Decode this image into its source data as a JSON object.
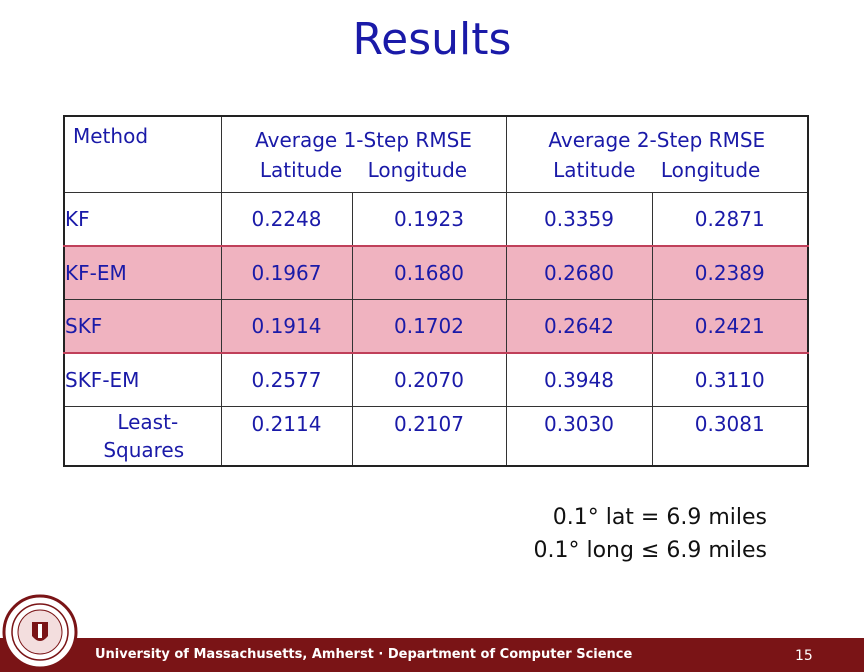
{
  "slide": {
    "title": "Results",
    "page_number": "15",
    "footer": "University of Massachusetts, Amherst · Department of Computer Science"
  },
  "table": {
    "header": {
      "method": "Method",
      "group1_title": "Average 1-Step RMSE",
      "group1_sub": "Latitude    Longitude",
      "group2_title": "Average 2-Step RMSE",
      "group2_sub": "Latitude    Longitude"
    },
    "rows": [
      {
        "method": "KF",
        "v": [
          "0.2248",
          "0.1923",
          "0.3359",
          "0.2871"
        ]
      },
      {
        "method": "KF-EM",
        "v": [
          "0.1967",
          "0.1680",
          "0.2680",
          "0.2389"
        ]
      },
      {
        "method": "SKF",
        "v": [
          "0.1914",
          "0.1702",
          "0.2642",
          "0.2421"
        ]
      },
      {
        "method": "SKF-EM",
        "v": [
          "0.2577",
          "0.2070",
          "0.3948",
          "0.3110"
        ]
      },
      {
        "method_line1": "Least-",
        "method_line2": "Squares",
        "v": [
          "0.2114",
          "0.2107",
          "0.3030",
          "0.3081"
        ]
      }
    ],
    "highlight_color": "#f0b3c0"
  },
  "notes": {
    "line1": "0.1° lat = 6.9 miles",
    "line2": "0.1° long ≤ 6.9 miles"
  },
  "colors": {
    "title": "#1a1aa8",
    "footer_bar": "#7a1416"
  }
}
